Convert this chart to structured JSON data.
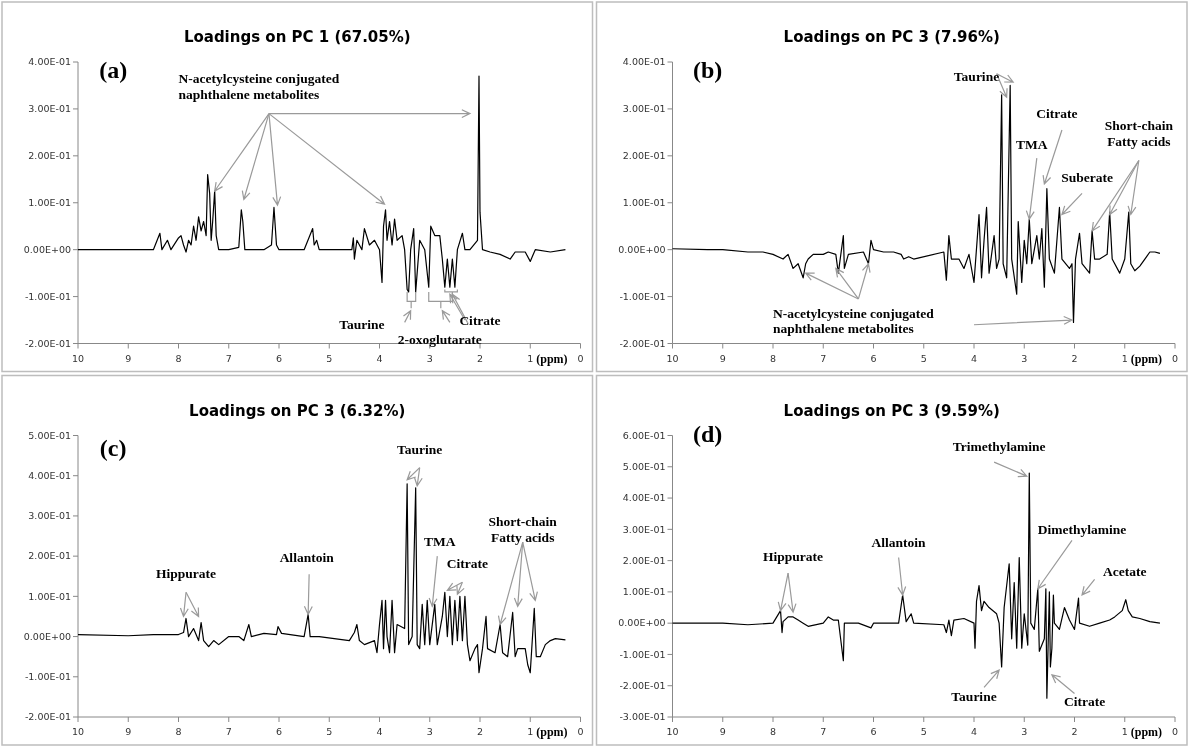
{
  "chart_data": [
    {
      "type": "line",
      "title": "Loadings on PC 1 (67.05%)",
      "xlabel": "(ppm)",
      "annotations": [
        "(a)",
        {
          "text": "N-acetylcysteine conjugated\nnaphthalene metabolites",
          "x": 7.28,
          "y": 0.125
        },
        "Taurine",
        "2-oxoglutarate",
        "Citrate"
      ],
      "xlim": [
        10,
        0
      ],
      "xticks": [
        10,
        9,
        8,
        7,
        6,
        5,
        4,
        3,
        2,
        1,
        0
      ],
      "ylim": [
        -0.2,
        0.4
      ],
      "yticks": [
        {
          "value": -0.2,
          "label": "-2.00E-01"
        },
        {
          "value": -0.1,
          "label": "-1.00E-01"
        },
        {
          "value": 0,
          "label": "0.00E+00"
        },
        {
          "value": 0.1,
          "label": "1.00E-01"
        },
        {
          "value": 0.2,
          "label": "2.00E-01"
        },
        {
          "value": 0.3,
          "label": "3.00E-01"
        },
        {
          "value": 0.4,
          "label": "4.00E-01"
        }
      ],
      "x": [
        10,
        9,
        8.5,
        8.37,
        8.33,
        8.22,
        8.15,
        8.0,
        7.95,
        7.9,
        7.85,
        7.8,
        7.75,
        7.7,
        7.65,
        7.6,
        7.55,
        7.5,
        7.45,
        7.42,
        7.38,
        7.35,
        7.32,
        7.28,
        7.25,
        7.2,
        7.0,
        6.8,
        6.75,
        6.72,
        6.68,
        6.3,
        6.15,
        6.1,
        6.05,
        6.0,
        5.5,
        5.33,
        5.3,
        5.25,
        5.2,
        4.55,
        4.52,
        4.5,
        4.45,
        4.35,
        4.3,
        4.2,
        4.1,
        4.0,
        3.95,
        3.92,
        3.88,
        3.85,
        3.8,
        3.75,
        3.7,
        3.65,
        3.55,
        3.5,
        3.45,
        3.42,
        3.38,
        3.32,
        3.28,
        3.2,
        3.1,
        3.02,
        2.98,
        2.9,
        2.8,
        2.75,
        2.7,
        2.65,
        2.6,
        2.55,
        2.5,
        2.45,
        2.35,
        2.3,
        2.2,
        2.05,
        2.02,
        2.0,
        1.95,
        1.8,
        1.6,
        1.4,
        1.3,
        1.1,
        1.0,
        0.9,
        0.6,
        0.3
      ],
      "series": [
        {
          "color": "#000000",
          "values": [
            0,
            0,
            0,
            0.035,
            0,
            0.02,
            0,
            0.025,
            0.03,
            0.01,
            -0.005,
            0.02,
            0.01,
            0.05,
            0.02,
            0.07,
            0.04,
            0.06,
            0.03,
            0.16,
            0.12,
            0.02,
            0.06,
            0.125,
            0.03,
            0,
            0,
            0.005,
            0.085,
            0.06,
            0,
            0,
            0.01,
            0.09,
            0.01,
            0,
            0,
            0.045,
            0.01,
            0.02,
            0,
            0,
            0.025,
            -0.02,
            0.02,
            0,
            0.045,
            0.01,
            0.02,
            0,
            -0.07,
            0.05,
            0.085,
            0.02,
            0.06,
            0.01,
            0.065,
            0.02,
            0.03,
            0,
            -0.085,
            -0.09,
            0,
            0.045,
            -0.09,
            0.02,
            0,
            -0.08,
            0.05,
            0.03,
            0.03,
            -0.02,
            -0.08,
            -0.02,
            -0.08,
            -0.02,
            -0.08,
            0,
            0.035,
            0,
            0,
            0.02,
            0.37,
            0.08,
            0,
            -0.005,
            -0.01,
            -0.02,
            -0.005,
            -0.005,
            -0.025,
            0,
            -0.005,
            0
          ]
        }
      ]
    },
    {
      "type": "line",
      "title": "Loadings on PC 3 (7.96%)",
      "xlabel": "(ppm)",
      "annotations": [
        "(b)",
        {
          "text": "Taurine",
          "x": 3.22,
          "y": 0.357
        },
        {
          "text": "TMA",
          "x": 2.9,
          "y": 0.065
        },
        {
          "text": "Citrate",
          "x": 2.6,
          "y": 0.14
        },
        {
          "text": "Suberate",
          "x": 2.25,
          "y": 0.075
        },
        {
          "text": "Short-chain\nFatty acids",
          "x": 1.65,
          "y": 0.04
        },
        {
          "text": "N-acetylcysteine conjugated\nnaphthalene metabolites",
          "x": 7.35,
          "y": -0.05
        }
      ],
      "xlim": [
        10,
        0
      ],
      "xticks": [
        10,
        9,
        8,
        7,
        6,
        5,
        4,
        3,
        2,
        1,
        0
      ],
      "ylim": [
        -0.2,
        0.4
      ],
      "yticks": [
        {
          "value": -0.2,
          "label": "-2.00E-01"
        },
        {
          "value": -0.1,
          "label": "-1.00E-01"
        },
        {
          "value": 0,
          "label": "0.00E+00"
        },
        {
          "value": 0.1,
          "label": "1.00E-01"
        },
        {
          "value": 0.2,
          "label": "2.00E-01"
        },
        {
          "value": 0.3,
          "label": "3.00E-01"
        },
        {
          "value": 0.4,
          "label": "4.00E-01"
        }
      ],
      "x": [
        10,
        9.3,
        9,
        8.5,
        8.2,
        8.0,
        7.8,
        7.7,
        7.6,
        7.5,
        7.4,
        7.35,
        7.3,
        7.2,
        7.0,
        6.9,
        6.75,
        6.7,
        6.6,
        6.58,
        6.5,
        6.2,
        6.1,
        6.05,
        6.0,
        5.8,
        5.6,
        5.45,
        5.4,
        5.3,
        5.2,
        4.6,
        4.55,
        4.5,
        4.45,
        4.3,
        4.2,
        4.1,
        4.0,
        3.9,
        3.85,
        3.8,
        3.75,
        3.7,
        3.6,
        3.55,
        3.5,
        3.45,
        3.42,
        3.35,
        3.28,
        3.25,
        3.15,
        3.12,
        3.05,
        3.0,
        2.95,
        2.9,
        2.85,
        2.75,
        2.7,
        2.65,
        2.6,
        2.55,
        2.5,
        2.4,
        2.3,
        2.25,
        2.1,
        2.05,
        2.02,
        1.98,
        1.9,
        1.85,
        1.7,
        1.65,
        1.6,
        1.5,
        1.35,
        1.3,
        1.25,
        1.1,
        1.0,
        0.92,
        0.88,
        0.8,
        0.7,
        0.6,
        0.5,
        0.4,
        0.3
      ],
      "series": [
        {
          "color": "#000000",
          "values": [
            0.002,
            0,
            0,
            -0.005,
            -0.005,
            -0.01,
            -0.02,
            -0.01,
            -0.04,
            -0.03,
            -0.06,
            -0.03,
            -0.02,
            -0.01,
            -0.01,
            -0.005,
            -0.01,
            -0.05,
            0.03,
            -0.04,
            -0.01,
            -0.005,
            -0.03,
            0.02,
            0,
            -0.005,
            -0.005,
            -0.01,
            -0.02,
            -0.015,
            -0.02,
            -0.005,
            -0.065,
            0.03,
            -0.02,
            -0.02,
            -0.04,
            -0.01,
            -0.07,
            0.075,
            -0.06,
            0.02,
            0.09,
            -0.05,
            0.03,
            -0.04,
            -0.02,
            0.33,
            -0.03,
            -0.06,
            0.35,
            -0.02,
            -0.095,
            0.06,
            -0.07,
            0.02,
            -0.03,
            0.065,
            -0.03,
            0.03,
            -0.02,
            0.045,
            -0.08,
            0.13,
            -0.02,
            -0.05,
            0.09,
            -0.02,
            -0.04,
            -0.03,
            -0.155,
            -0.02,
            0.035,
            -0.03,
            -0.05,
            0.04,
            -0.02,
            -0.02,
            -0.01,
            0.08,
            -0.02,
            -0.05,
            -0.02,
            0.08,
            -0.03,
            -0.045,
            -0.035,
            -0.02,
            -0.005,
            -0.005,
            -0.008
          ]
        }
      ]
    },
    {
      "type": "line",
      "title": "Loadings on PC 3 (6.32%)",
      "xlabel": "(ppm)",
      "annotations": [
        "(c)",
        {
          "text": "Hippurate",
          "x": 7.9,
          "y": 0.05
        },
        {
          "text": "Allantoin",
          "x": 5.42,
          "y": 0.055
        },
        {
          "text": "Taurine",
          "x": 3.45,
          "y": 0.39
        },
        {
          "text": "TMA",
          "x": 2.95,
          "y": 0.075
        },
        {
          "text": "Citrate",
          "x": 2.65,
          "y": 0.115
        },
        {
          "text": "Short-chain\nFatty acids",
          "x": 1.6,
          "y": 0.03
        }
      ],
      "xlim": [
        10,
        0
      ],
      "xticks": [
        10,
        9,
        8,
        7,
        6,
        5,
        4,
        3,
        2,
        1,
        0
      ],
      "ylim": [
        -0.2,
        0.5
      ],
      "yticks": [
        {
          "value": -0.2,
          "label": "-2.00E-01"
        },
        {
          "value": -0.1,
          "label": "-1.00E-01"
        },
        {
          "value": 0,
          "label": "0.00E+00"
        },
        {
          "value": 0.1,
          "label": "1.00E-01"
        },
        {
          "value": 0.2,
          "label": "2.00E-01"
        },
        {
          "value": 0.3,
          "label": "3.00E-01"
        },
        {
          "value": 0.4,
          "label": "4.00E-01"
        },
        {
          "value": 0.5,
          "label": "5.00E-01"
        }
      ],
      "x": [
        10,
        9,
        8.5,
        8.0,
        7.9,
        7.85,
        7.8,
        7.7,
        7.6,
        7.55,
        7.5,
        7.4,
        7.3,
        7.2,
        7.0,
        6.8,
        6.7,
        6.6,
        6.55,
        6.3,
        6.05,
        6.02,
        5.95,
        5.5,
        5.42,
        5.38,
        5.2,
        4.6,
        4.5,
        4.45,
        4.4,
        4.3,
        4.1,
        4.05,
        4.0,
        3.95,
        3.92,
        3.88,
        3.85,
        3.8,
        3.75,
        3.7,
        3.65,
        3.5,
        3.45,
        3.42,
        3.35,
        3.28,
        3.25,
        3.2,
        3.15,
        3.1,
        3.05,
        3.0,
        2.9,
        2.85,
        2.75,
        2.7,
        2.65,
        2.6,
        2.55,
        2.5,
        2.45,
        2.4,
        2.35,
        2.3,
        2.25,
        2.2,
        2.1,
        2.05,
        2.02,
        1.95,
        1.88,
        1.85,
        1.7,
        1.6,
        1.55,
        1.45,
        1.35,
        1.3,
        1.25,
        1.1,
        1.05,
        1.0,
        0.92,
        0.88,
        0.8,
        0.7,
        0.6,
        0.5,
        0.3
      ],
      "series": [
        {
          "color": "#000000",
          "values": [
            0.005,
            0.002,
            0.005,
            0.005,
            0.01,
            0.045,
            0,
            0.02,
            -0.01,
            0.035,
            -0.01,
            -0.025,
            -0.01,
            -0.02,
            0,
            0,
            -0.01,
            0.03,
            0,
            0.008,
            0.005,
            0.025,
            0.008,
            0,
            0.055,
            0,
            0,
            -0.01,
            0.01,
            0.03,
            -0.01,
            -0.02,
            -0.01,
            -0.04,
            0.03,
            0.09,
            -0.03,
            0.09,
            0,
            -0.04,
            0.09,
            -0.04,
            0.03,
            0.02,
            0.38,
            -0.02,
            0,
            0.37,
            -0.02,
            -0.03,
            0.08,
            -0.02,
            0.09,
            -0.02,
            0.08,
            -0.02,
            0.05,
            0.11,
            0,
            0.1,
            -0.02,
            0.09,
            -0.01,
            0.1,
            -0.01,
            0.1,
            -0.02,
            -0.06,
            -0.03,
            -0.02,
            -0.09,
            -0.03,
            0.05,
            -0.03,
            -0.04,
            0.03,
            -0.04,
            -0.05,
            0.06,
            -0.05,
            -0.03,
            -0.03,
            -0.07,
            -0.09,
            0.07,
            -0.05,
            -0.05,
            -0.02,
            -0.01,
            -0.005,
            -0.008
          ]
        }
      ]
    },
    {
      "type": "line",
      "title": "Loadings on PC 3 (9.59%)",
      "xlabel": "(ppm)",
      "annotations": [
        "(d)",
        {
          "text": "Hippurate",
          "x": 7.85,
          "y": 0.04
        },
        {
          "text": "Allantoin",
          "x": 5.42,
          "y": 0.09
        },
        {
          "text": "Trimethylamine",
          "x": 2.95,
          "y": 0.47
        },
        {
          "text": "Dimethylamine",
          "x": 2.73,
          "y": 0.11
        },
        {
          "text": "Acetate",
          "x": 1.85,
          "y": 0.09
        },
        {
          "text": "Taurine",
          "x": 3.5,
          "y": -0.15
        },
        {
          "text": "Citrate",
          "x": 2.45,
          "y": -0.165
        }
      ],
      "xlim": [
        10,
        0
      ],
      "xticks": [
        10,
        9,
        8,
        7,
        6,
        5,
        4,
        3,
        2,
        1,
        0
      ],
      "ylim": [
        -0.3,
        0.6
      ],
      "yticks": [
        {
          "value": -0.3,
          "label": "-3.00E-01"
        },
        {
          "value": -0.2,
          "label": "-2.00E-01"
        },
        {
          "value": -0.1,
          "label": "-1.00E-01"
        },
        {
          "value": 0,
          "label": "0.00E+00"
        },
        {
          "value": 0.1,
          "label": "1.00E-01"
        },
        {
          "value": 0.2,
          "label": "2.00E-01"
        },
        {
          "value": 0.3,
          "label": "3.00E-01"
        },
        {
          "value": 0.4,
          "label": "4.00E-01"
        },
        {
          "value": 0.5,
          "label": "5.00E-01"
        },
        {
          "value": 0.6,
          "label": "6.00E-01"
        }
      ],
      "x": [
        10,
        9,
        8.5,
        8.0,
        7.85,
        7.82,
        7.8,
        7.7,
        7.6,
        7.5,
        7.4,
        7.3,
        7.0,
        6.9,
        6.8,
        6.7,
        6.6,
        6.58,
        6.3,
        6.05,
        6.0,
        5.5,
        5.42,
        5.35,
        5.25,
        5.2,
        4.6,
        4.55,
        4.5,
        4.45,
        4.4,
        4.2,
        4.0,
        3.98,
        3.95,
        3.9,
        3.85,
        3.8,
        3.7,
        3.55,
        3.5,
        3.45,
        3.4,
        3.3,
        3.25,
        3.2,
        3.15,
        3.1,
        3.05,
        3.0,
        2.93,
        2.9,
        2.87,
        2.8,
        2.73,
        2.7,
        2.6,
        2.57,
        2.55,
        2.5,
        2.48,
        2.45,
        2.42,
        2.4,
        2.3,
        2.2,
        2.1,
        2.0,
        1.92,
        1.9,
        1.7,
        1.5,
        1.3,
        1.2,
        1.05,
        0.98,
        0.93,
        0.85,
        0.7,
        0.5,
        0.3
      ],
      "series": [
        {
          "color": "#000000",
          "values": [
            0,
            0,
            -0.005,
            0,
            0.04,
            -0.03,
            0.005,
            0.02,
            0.02,
            0.01,
            0,
            -0.01,
            0,
            0.02,
            0.01,
            0.01,
            -0.12,
            0,
            0,
            -0.015,
            0,
            0,
            0.09,
            0.005,
            0.03,
            0,
            -0.005,
            -0.03,
            0.01,
            -0.04,
            0.01,
            0.015,
            0,
            -0.08,
            0.07,
            0.12,
            0.04,
            0.07,
            0.05,
            0.03,
            0,
            -0.14,
            0.05,
            0.19,
            -0.05,
            0.13,
            -0.08,
            0.21,
            -0.08,
            0.03,
            -0.07,
            0.48,
            0,
            -0.02,
            0.11,
            -0.09,
            -0.05,
            0.11,
            -0.24,
            0.1,
            -0.14,
            -0.08,
            0.09,
            0,
            -0.02,
            0.05,
            0.01,
            -0.02,
            0.08,
            0,
            -0.01,
            0,
            0.01,
            0.02,
            0.04,
            0.075,
            0.04,
            0.02,
            0.015,
            0.005,
            0
          ]
        }
      ]
    }
  ]
}
